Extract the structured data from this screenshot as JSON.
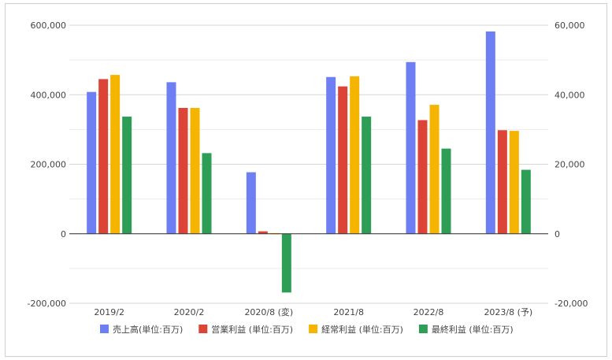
{
  "chart_data": {
    "type": "bar",
    "categories": [
      "2019/2",
      "2020/2",
      "2020/8 (変)",
      "2021/8",
      "2022/8",
      "2023/8 (予)"
    ],
    "series": [
      {
        "name": "売上高(単位:百万)",
        "color": "#6d7ff3",
        "values": [
          408000,
          436000,
          177000,
          451000,
          494000,
          582000
        ]
      },
      {
        "name": "営業利益 (単位:百万)",
        "color": "#db4437",
        "values": [
          44500,
          36200,
          700,
          42400,
          32700,
          29800
        ]
      },
      {
        "name": "経常利益 (単位:百万)",
        "color": "#f4b400",
        "values": [
          45700,
          36200,
          200,
          45300,
          37100,
          29600
        ]
      },
      {
        "name": "最終利益 (単位:百万)",
        "color": "#2e9e56",
        "values": [
          33700,
          23200,
          -16900,
          33700,
          24500,
          18400
        ]
      }
    ],
    "primary_axis": {
      "min": -200000,
      "max": 600000,
      "ticks": [
        -200000,
        0,
        200000,
        400000,
        600000
      ],
      "tick_labels": [
        "-200,000",
        "0",
        "200,000",
        "400,000",
        "600,000"
      ]
    },
    "secondary_axis": {
      "min": -20000,
      "max": 60000,
      "ticks": [
        -20000,
        0,
        20000,
        40000,
        60000
      ],
      "tick_labels": [
        "-20,000",
        "0",
        "20,000",
        "40,000",
        "60,000"
      ]
    },
    "series_axis": [
      0,
      1,
      1,
      1
    ],
    "legend_position": "bottom",
    "grid": true
  }
}
